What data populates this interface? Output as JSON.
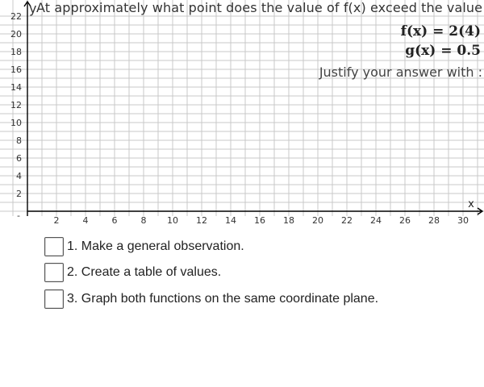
{
  "question": {
    "text": "At approximately what point does the value of f(x) exceed the value"
  },
  "equations": {
    "f": "f(x) = 2(4)",
    "g": "g(x) = 0.5"
  },
  "justify": {
    "text": "Justify your answer with :"
  },
  "axes": {
    "x_label": "x",
    "y_label": "y",
    "x_ticks": [
      2,
      4,
      6,
      8,
      10,
      12,
      14,
      16,
      18,
      20,
      22,
      24,
      26,
      28,
      30
    ],
    "y_ticks": [
      2,
      4,
      6,
      8,
      10,
      12,
      14,
      16,
      18,
      20,
      22
    ],
    "x_range": [
      -1,
      32
    ],
    "y_range": [
      -0.5,
      22.7
    ],
    "grid_step": 1,
    "origin_label": "-"
  },
  "checklist": {
    "items": [
      {
        "label": "1. Make a general observation.",
        "checked": false
      },
      {
        "label": "2. Create a table of values.",
        "checked": false
      },
      {
        "label": "3. Graph both functions on the same coordinate plane.",
        "checked": false
      }
    ]
  },
  "colors": {
    "grid": "#c8c8c8",
    "axis": "#000000",
    "text": "#333333"
  }
}
